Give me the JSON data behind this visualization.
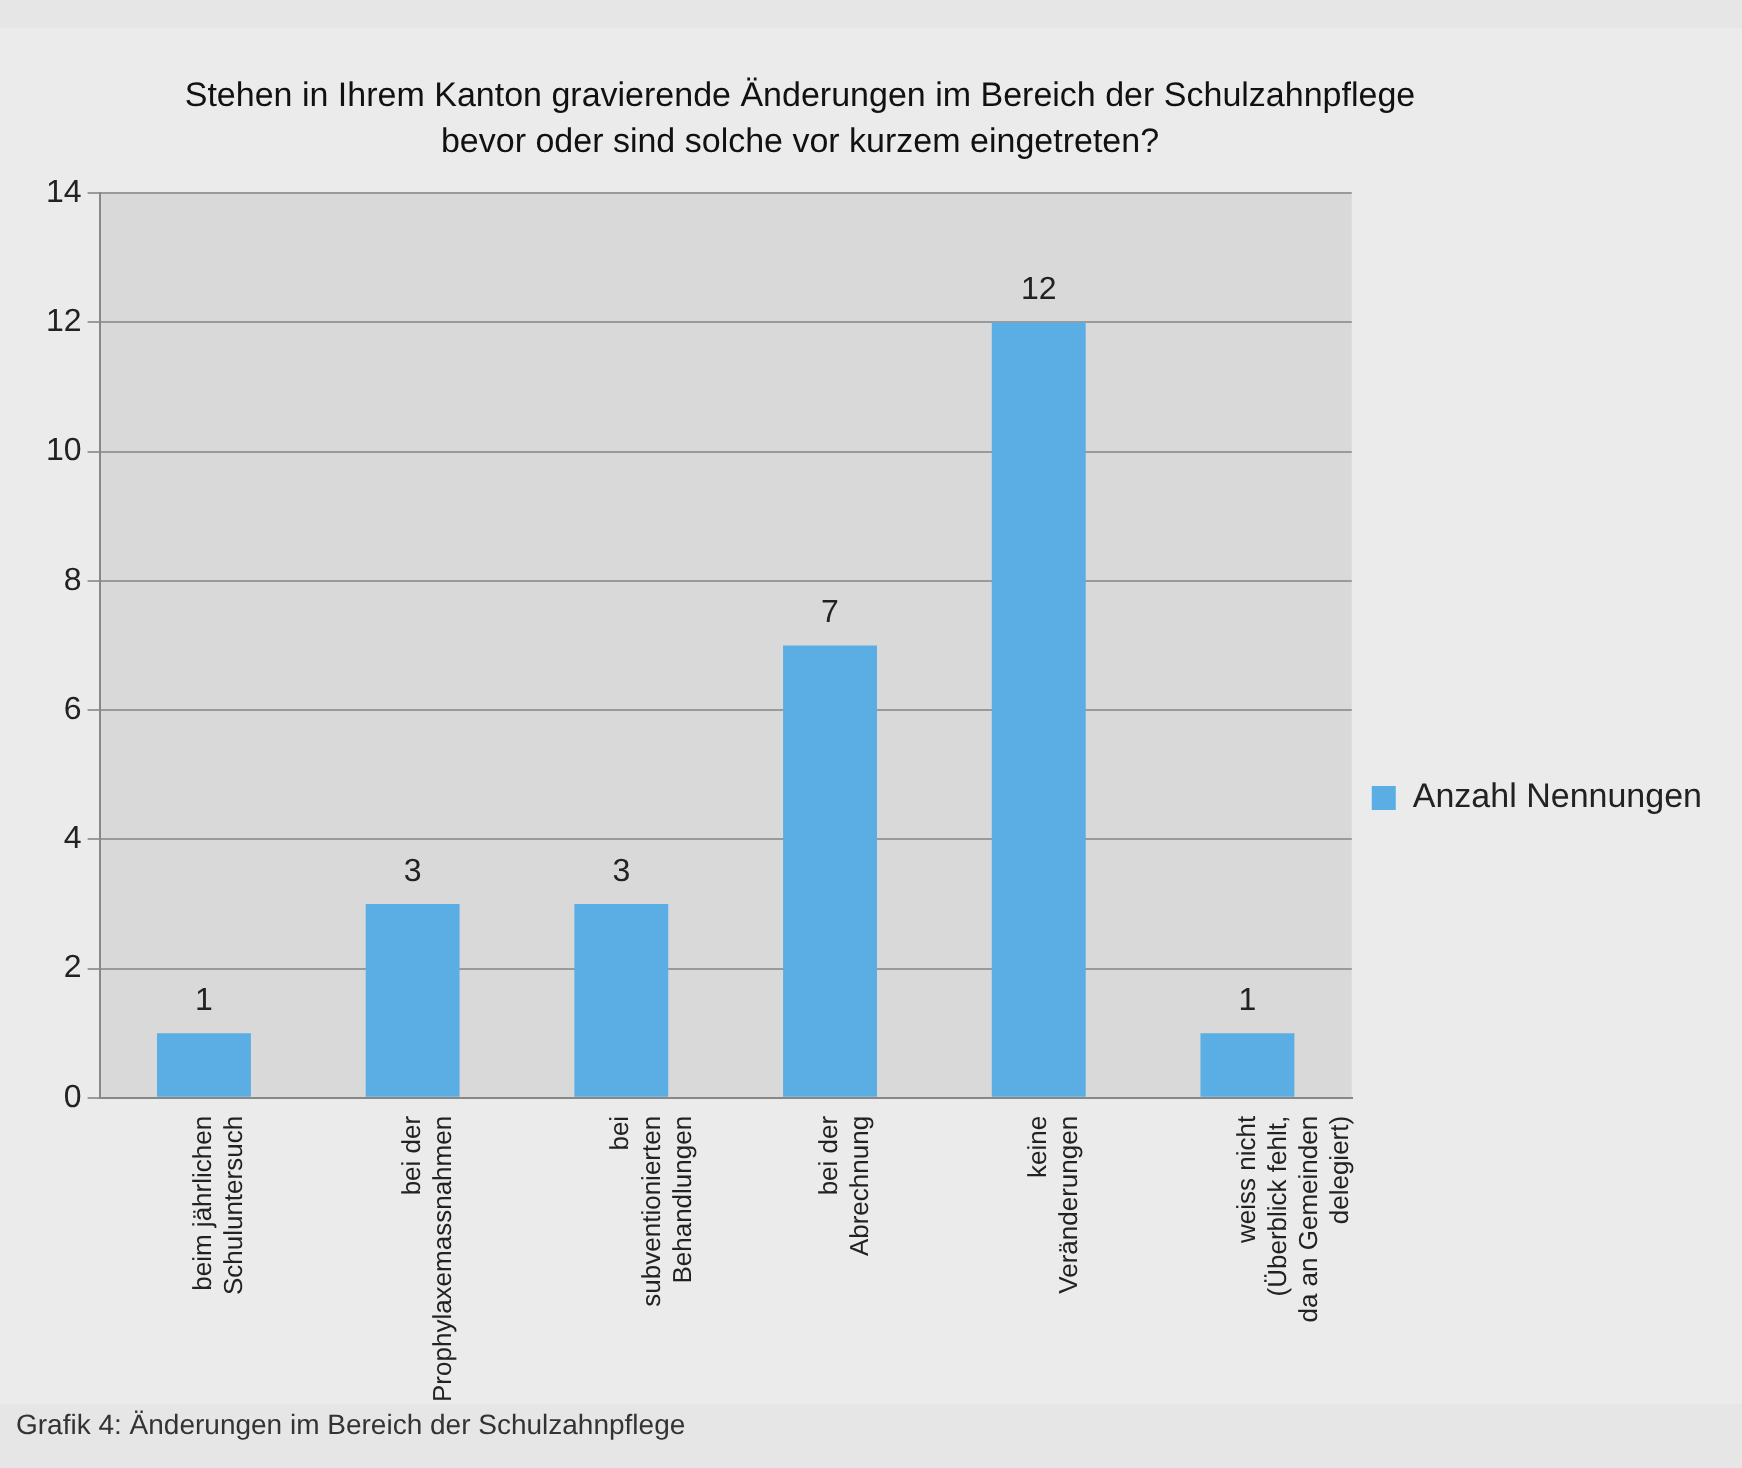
{
  "chart_data": {
    "type": "bar",
    "title": "Stehen in Ihrem Kanton gravierende Änderungen im Bereich der Schulzahnpflege bevor oder sind solche vor kurzem eingetreten?",
    "categories": [
      "beim jährlichen Schuluntersuch",
      "bei der Prophylaxemassnahmen",
      "bei subventionierten Behandlungen",
      "bei der Abrechnung",
      "keine Veränderungen",
      "weiss nicht (Überblick fehlt, da an Gemeinden delegiert)"
    ],
    "series": [
      {
        "name": "Anzahl Nennungen",
        "color": "#5aaee3",
        "values": [
          1,
          3,
          3,
          7,
          12,
          1
        ]
      }
    ],
    "ylim": [
      0,
      14
    ],
    "yticks": [
      0,
      2,
      4,
      6,
      8,
      10,
      12,
      14
    ],
    "grid": "y",
    "legend": "right",
    "data_labels": true,
    "annotations": [
      "Grafik 4: Änderungen im Bereich der Schulzahnpflege"
    ]
  }
}
